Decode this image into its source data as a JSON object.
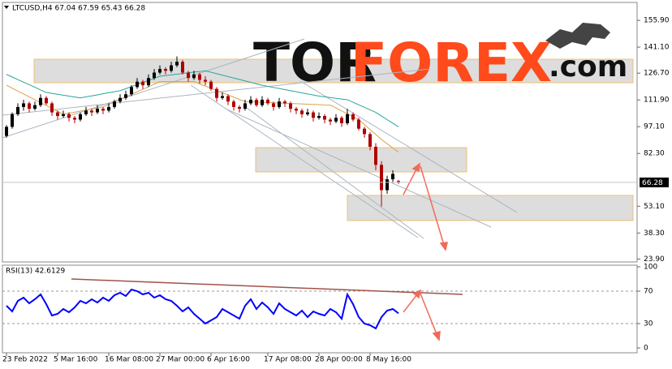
{
  "chart_data": {
    "type": "candlestick",
    "title": "LTCUSD,H4  67.04 67.59 65.43 66.28",
    "categories": [
      "23 Feb 2022",
      null,
      null,
      null,
      null,
      null,
      null,
      null,
      null,
      "5 Mar 16:00",
      null,
      null,
      null,
      null,
      null,
      null,
      null,
      null,
      "16 Mar 08:00",
      null,
      null,
      null,
      null,
      null,
      null,
      null,
      null,
      "27 Mar 00:00",
      null,
      null,
      null,
      null,
      null,
      null,
      null,
      null,
      "6 Apr 16:00",
      null,
      null,
      null,
      null,
      null,
      null,
      null,
      null,
      null,
      "17 Apr 08:00",
      null,
      null,
      null,
      null,
      null,
      null,
      null,
      null,
      "28 Apr 00:00",
      null,
      null,
      null,
      null,
      null,
      null,
      null,
      null,
      "8 May 16:00",
      null,
      null,
      null,
      null,
      null
    ],
    "ohlc": [
      [
        92,
        98,
        91,
        97
      ],
      [
        97,
        105,
        96,
        104
      ],
      [
        104,
        110,
        103,
        108
      ],
      [
        108,
        112,
        106,
        110
      ],
      [
        110,
        111,
        105,
        107
      ],
      [
        107,
        111,
        106,
        109
      ],
      [
        109,
        115,
        108,
        113
      ],
      [
        113,
        114,
        109,
        110
      ],
      [
        110,
        111,
        103,
        105
      ],
      [
        105,
        106,
        101,
        103
      ],
      [
        103,
        106,
        102,
        104
      ],
      [
        104,
        105,
        100,
        102
      ],
      [
        102,
        103,
        99,
        101
      ],
      [
        101,
        105,
        100,
        104
      ],
      [
        104,
        108,
        103,
        106
      ],
      [
        106,
        107,
        103,
        105
      ],
      [
        105,
        109,
        104,
        107
      ],
      [
        107,
        108,
        104,
        106
      ],
      [
        106,
        110,
        105,
        108
      ],
      [
        108,
        112,
        107,
        111
      ],
      [
        111,
        115,
        110,
        113
      ],
      [
        113,
        117,
        112,
        115
      ],
      [
        115,
        120,
        114,
        119
      ],
      [
        119,
        124,
        118,
        122
      ],
      [
        122,
        123,
        118,
        120
      ],
      [
        120,
        126,
        119,
        124
      ],
      [
        124,
        129,
        123,
        127
      ],
      [
        127,
        131,
        126,
        129
      ],
      [
        129,
        130,
        126,
        128
      ],
      [
        128,
        133,
        127,
        131
      ],
      [
        131,
        136,
        130,
        133
      ],
      [
        133,
        134,
        126,
        127
      ],
      [
        127,
        128,
        122,
        124
      ],
      [
        124,
        128,
        123,
        126
      ],
      [
        126,
        127,
        121,
        123
      ],
      [
        123,
        125,
        120,
        122
      ],
      [
        122,
        123,
        117,
        118
      ],
      [
        118,
        119,
        111,
        113
      ],
      [
        113,
        116,
        112,
        114
      ],
      [
        114,
        115,
        109,
        111
      ],
      [
        111,
        112,
        106,
        108
      ],
      [
        108,
        109,
        105,
        107
      ],
      [
        107,
        112,
        106,
        110
      ],
      [
        110,
        114,
        109,
        112
      ],
      [
        112,
        113,
        108,
        109
      ],
      [
        109,
        114,
        108,
        112
      ],
      [
        112,
        113,
        109,
        110
      ],
      [
        110,
        111,
        106,
        108
      ],
      [
        108,
        113,
        107,
        111
      ],
      [
        111,
        112,
        108,
        110
      ],
      [
        110,
        111,
        105,
        107
      ],
      [
        107,
        108,
        104,
        106
      ],
      [
        106,
        107,
        102,
        104
      ],
      [
        104,
        107,
        103,
        105
      ],
      [
        105,
        106,
        100,
        102
      ],
      [
        102,
        105,
        101,
        103
      ],
      [
        103,
        104,
        99,
        101
      ],
      [
        101,
        102,
        98,
        100
      ],
      [
        100,
        104,
        99,
        102
      ],
      [
        102,
        103,
        97,
        99
      ],
      [
        99,
        107,
        98,
        104
      ],
      [
        104,
        105,
        100,
        101
      ],
      [
        101,
        102,
        95,
        96
      ],
      [
        96,
        97,
        91,
        93
      ],
      [
        93,
        94,
        84,
        86
      ],
      [
        86,
        88,
        73,
        76
      ],
      [
        76,
        78,
        53,
        62
      ],
      [
        62,
        70,
        60,
        68
      ],
      [
        68,
        73,
        66,
        71
      ],
      [
        67.04,
        67.59,
        65.43,
        66.28
      ]
    ],
    "up_color": "#000000",
    "down_color": "#b00000",
    "moving_averages": [
      {
        "color": "#d9a24a",
        "values": [
          120,
          118.4,
          116.8,
          115.2,
          113.6,
          112,
          110.4,
          108.8,
          107.2,
          105.6,
          104,
          104.6,
          105.1,
          105.7,
          106.3,
          106.9,
          107.4,
          108,
          109.4,
          110.8,
          112.2,
          113.6,
          115,
          116.4,
          117.8,
          119.2,
          120.6,
          122,
          122,
          122,
          122,
          122,
          122,
          122,
          120.8,
          119.6,
          118.3,
          117.1,
          115.9,
          114.7,
          113.4,
          112.2,
          111,
          110.9,
          110.7,
          110.6,
          110.5,
          110.3,
          110.2,
          110.1,
          109.9,
          109.8,
          109.7,
          109.5,
          109.4,
          109.3,
          109.1,
          109,
          107.4,
          105.8,
          104.2,
          102.6,
          101,
          98.3,
          95.5,
          92.8,
          90,
          87.7,
          85.3,
          83
        ]
      },
      {
        "color": "#2aa39a",
        "values": [
          126,
          124.6,
          123.1,
          121.7,
          120.3,
          118.9,
          117.4,
          116,
          115.5,
          115,
          114.5,
          114,
          113.5,
          113,
          113.6,
          114.1,
          114.7,
          115.3,
          115.9,
          116.4,
          117,
          118.1,
          119.3,
          120.4,
          121.6,
          122.7,
          123.9,
          125,
          125.4,
          125.8,
          126.1,
          126.5,
          126.9,
          127.3,
          127.6,
          128,
          127.2,
          126.4,
          125.6,
          124.8,
          124,
          123.2,
          122.4,
          121.6,
          120.8,
          120,
          119.4,
          118.8,
          118.2,
          117.6,
          117,
          116.4,
          115.8,
          115.2,
          114.6,
          114,
          113.6,
          113.2,
          112.8,
          112.4,
          112,
          110.6,
          109.2,
          107.8,
          106.4,
          105,
          103,
          101,
          99,
          97
        ]
      }
    ],
    "zones": [
      [
        134.4,
        121.4
      ],
      [
        85.5,
        72.1
      ],
      [
        59.1,
        45.2
      ]
    ],
    "last_price": 66.28,
    "ylim": [
      22.3,
      165.8
    ],
    "yticks": [
      {
        "value": 155.9,
        "label": "155.90"
      },
      {
        "value": 141.1,
        "label": "141.10"
      },
      {
        "value": 126.7,
        "label": "126.70"
      },
      {
        "value": 111.9,
        "label": "111.90"
      },
      {
        "value": 97.1,
        "label": "97.10"
      },
      {
        "value": 82.3,
        "label": "82.30"
      },
      {
        "value": 53.1,
        "label": "53.10"
      },
      {
        "value": 38.3,
        "label": "38.30"
      },
      {
        "value": 23.9,
        "label": "23.90"
      }
    ],
    "watermark": [
      "TOR",
      "FOREX",
      ".com"
    ],
    "rsi": {
      "type": "line",
      "title": "RSI(13) 42.6129",
      "color": "#0000ff",
      "values": [
        52,
        45,
        58,
        62,
        55,
        60,
        66,
        54,
        40,
        42,
        48,
        44,
        50,
        58,
        55,
        60,
        56,
        62,
        58,
        65,
        68,
        64,
        72,
        70,
        66,
        68,
        62,
        65,
        60,
        58,
        52,
        45,
        50,
        42,
        36,
        30,
        34,
        38,
        48,
        44,
        40,
        36,
        52,
        60,
        48,
        56,
        50,
        42,
        55,
        48,
        44,
        40,
        46,
        38,
        45,
        42,
        40,
        48,
        44,
        36,
        66,
        54,
        38,
        30,
        28,
        24,
        38,
        46,
        48,
        42.6129
      ],
      "ylim": [
        -6,
        102
      ],
      "yticks": [
        0,
        30,
        70,
        100
      ],
      "levels": [
        30,
        70
      ]
    }
  }
}
